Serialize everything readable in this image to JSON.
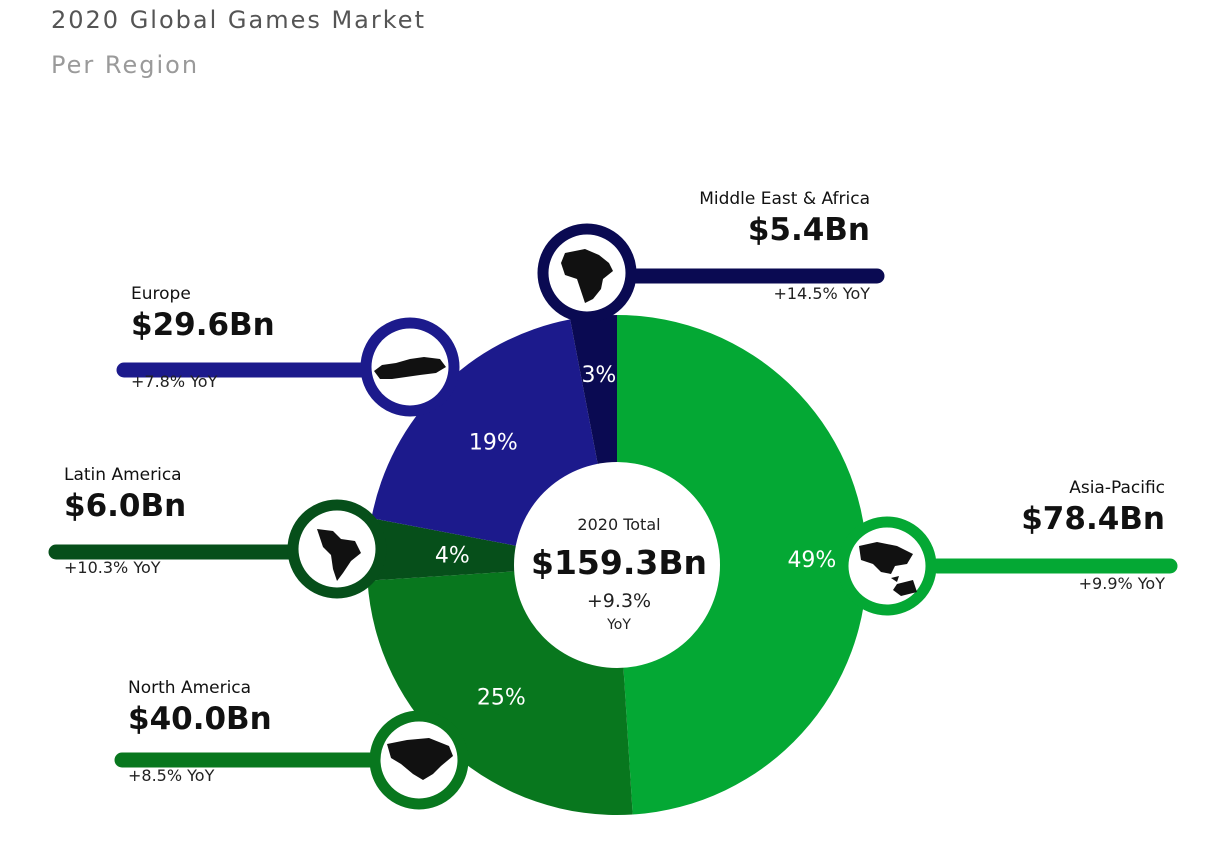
{
  "header": {
    "title": "2020 Global Games Market",
    "subtitle": "Per Region"
  },
  "chart_data": {
    "type": "pie",
    "title": "2020 Global Games Market",
    "subtitle": "Per Region",
    "center": {
      "label": "2020 Total",
      "value": "$159.3Bn",
      "change": "+9.3%",
      "change_unit": "YoY"
    },
    "slices": [
      {
        "name": "Asia-Pacific",
        "value": 78.4,
        "percent": 49,
        "percent_label": "49%",
        "value_label": "$78.4Bn",
        "yoy": "+9.9% YoY",
        "color": "#04a834",
        "icon": "asia-pacific-map-icon"
      },
      {
        "name": "North America",
        "value": 40.0,
        "percent": 25,
        "percent_label": "25%",
        "value_label": "$40.0Bn",
        "yoy": "+8.5% YoY",
        "color": "#08771e",
        "icon": "north-america-map-icon"
      },
      {
        "name": "Latin America",
        "value": 6.0,
        "percent": 4,
        "percent_label": "4%",
        "value_label": "$6.0Bn",
        "yoy": "+10.3% YoY",
        "color": "#064f1a",
        "icon": "latin-america-map-icon"
      },
      {
        "name": "Europe",
        "value": 29.6,
        "percent": 19,
        "percent_label": "19%",
        "value_label": "$29.6Bn",
        "yoy": "+7.8% YoY",
        "color": "#1c1a8c",
        "icon": "europe-map-icon"
      },
      {
        "name": "Middle East & Africa",
        "value": 5.4,
        "percent": 3,
        "percent_label": "3%",
        "value_label": "$5.4Bn",
        "yoy": "+14.5% YoY",
        "color": "#0a0a52",
        "icon": "africa-map-icon"
      }
    ]
  }
}
